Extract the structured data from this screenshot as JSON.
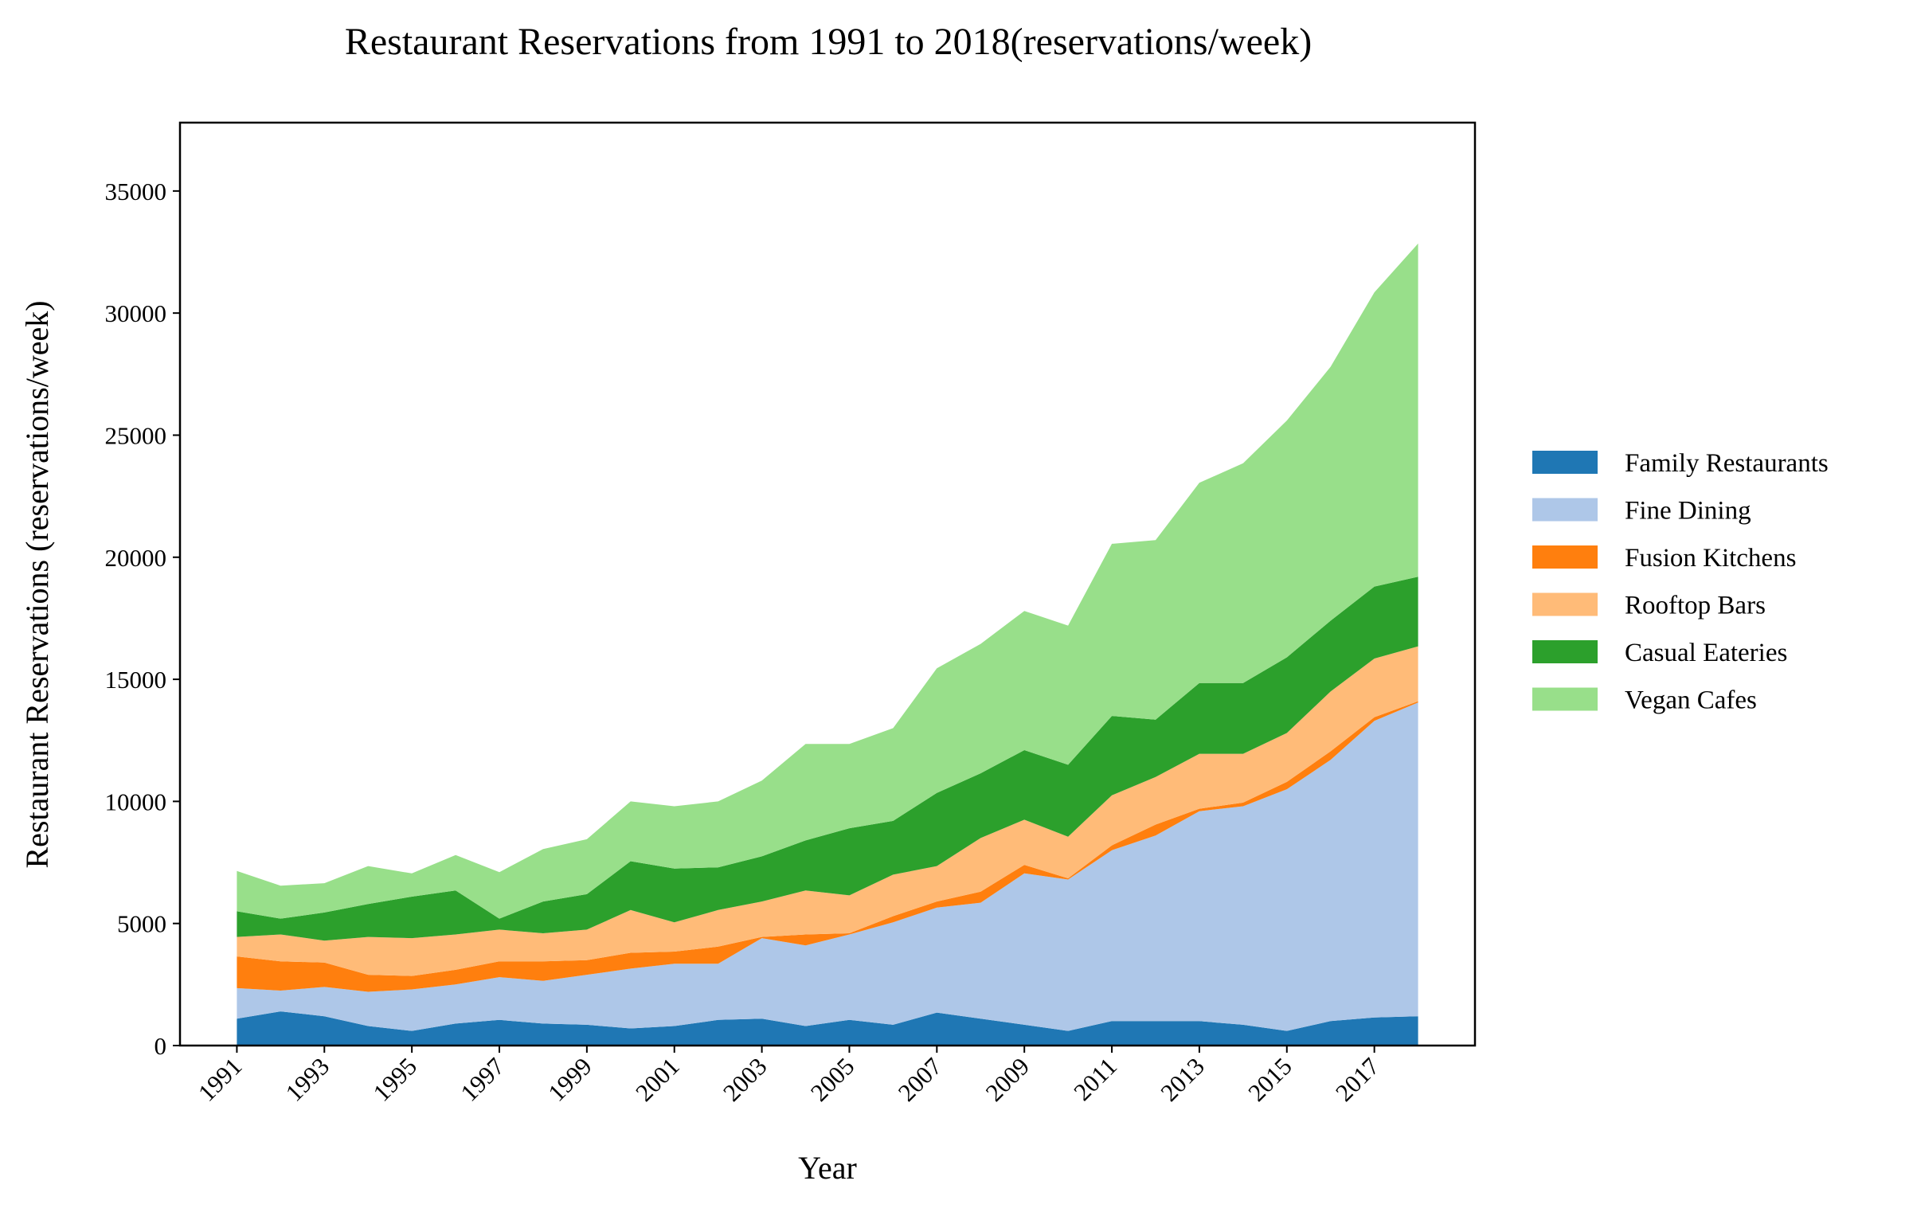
{
  "chart_data": {
    "type": "area",
    "stacked": true,
    "title": "Restaurant Reservations from 1991 to 2018(reservations/week)",
    "xlabel": "Year",
    "ylabel": "Restaurant Reservations (reservations/week)",
    "xlim": [
      1989.7,
      2019.3
    ],
    "ylim": [
      0,
      37800
    ],
    "x_ticks": [
      1991,
      1993,
      1995,
      1997,
      1999,
      2001,
      2003,
      2005,
      2007,
      2009,
      2011,
      2013,
      2015,
      2017
    ],
    "y_ticks": [
      0,
      5000,
      10000,
      15000,
      20000,
      25000,
      30000,
      35000
    ],
    "legend_position": "right",
    "grid": false,
    "x": [
      1991,
      1992,
      1993,
      1994,
      1995,
      1996,
      1997,
      1998,
      1999,
      2000,
      2001,
      2002,
      2003,
      2004,
      2005,
      2006,
      2007,
      2008,
      2009,
      2010,
      2011,
      2012,
      2013,
      2014,
      2015,
      2016,
      2017,
      2018
    ],
    "series": [
      {
        "name": "Family Restaurants",
        "color": "#1f77b4",
        "values": [
          1100,
          1400,
          1200,
          800,
          600,
          900,
          1050,
          900,
          850,
          700,
          800,
          1050,
          1100,
          800,
          1050,
          850,
          1350,
          1100,
          850,
          600,
          1000,
          1000,
          1000,
          850,
          600,
          1000,
          1150,
          1200
        ]
      },
      {
        "name": "Fine Dining",
        "color": "#aec7e8",
        "values": [
          1250,
          850,
          1200,
          1400,
          1700,
          1600,
          1750,
          1750,
          2050,
          2450,
          2550,
          2300,
          3300,
          3300,
          3500,
          4200,
          4300,
          4750,
          6200,
          6200,
          7000,
          7600,
          8600,
          8950,
          9900,
          10700,
          12150,
          12850
        ]
      },
      {
        "name": "Fusion Kitchens",
        "color": "#ff7f0e",
        "values": [
          1300,
          1200,
          1000,
          700,
          550,
          600,
          650,
          800,
          600,
          650,
          500,
          700,
          50,
          450,
          50,
          250,
          250,
          450,
          350,
          50,
          200,
          450,
          100,
          150,
          300,
          350,
          150,
          50
        ]
      },
      {
        "name": "Rooftop Bars",
        "color": "#ffbb78",
        "values": [
          800,
          1100,
          900,
          1550,
          1550,
          1450,
          1300,
          1150,
          1250,
          1750,
          1200,
          1500,
          1450,
          1800,
          1550,
          1700,
          1450,
          2200,
          1850,
          1700,
          2050,
          1950,
          2250,
          2000,
          2000,
          2450,
          2400,
          2250
        ]
      },
      {
        "name": "Casual Eateries",
        "color": "#2ca02c",
        "values": [
          1050,
          650,
          1150,
          1350,
          1700,
          1800,
          450,
          1300,
          1450,
          2000,
          2200,
          1750,
          1850,
          2050,
          2750,
          2200,
          3000,
          2650,
          2850,
          2950,
          3250,
          2350,
          2900,
          2900,
          3100,
          2900,
          2950,
          2850
        ]
      },
      {
        "name": "Vegan Cafes",
        "color": "#98df8a",
        "values": [
          1650,
          1350,
          1200,
          1550,
          950,
          1450,
          1900,
          2150,
          2250,
          2450,
          2550,
          2700,
          3100,
          3950,
          3450,
          3800,
          5100,
          5300,
          5700,
          5700,
          7050,
          7350,
          8200,
          9000,
          9700,
          10400,
          12050,
          13650
        ]
      }
    ]
  }
}
